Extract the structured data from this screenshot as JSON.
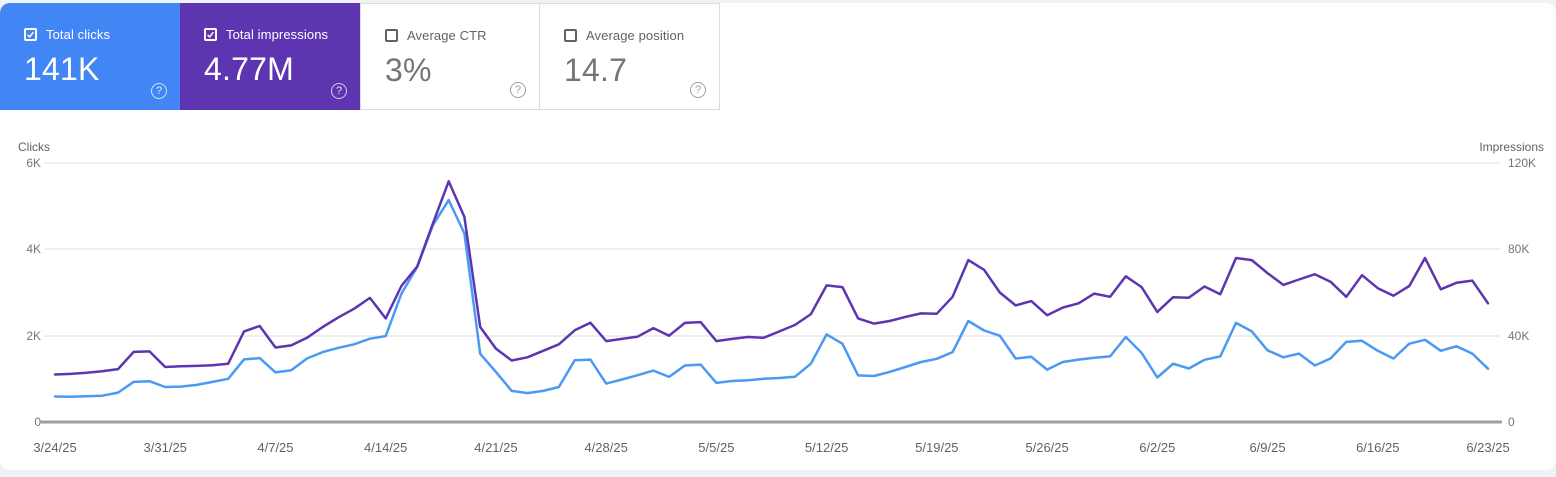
{
  "cards": [
    {
      "label": "Total clicks",
      "value": "141K",
      "checked": true,
      "bg": "#4285f4"
    },
    {
      "label": "Total impressions",
      "value": "4.77M",
      "checked": true,
      "bg": "#5e35b1"
    },
    {
      "label": "Average CTR",
      "value": "3%",
      "checked": false,
      "bg": "#ffffff"
    },
    {
      "label": "Average position",
      "value": "14.7",
      "checked": false,
      "bg": "#ffffff"
    }
  ],
  "chart_data": {
    "type": "line",
    "granularity": "daily",
    "date_range": {
      "start": "3/24/25",
      "end": "6/23/25"
    },
    "grid": true,
    "x_tick_labels": [
      "3/24/25",
      "3/31/25",
      "4/7/25",
      "4/14/25",
      "4/21/25",
      "4/28/25",
      "5/5/25",
      "5/12/25",
      "5/19/25",
      "5/26/25",
      "6/2/25",
      "6/9/25",
      "6/16/25",
      "6/23/25"
    ],
    "left_axis": {
      "title": "Clicks",
      "ticks": [
        "0",
        "2K",
        "4K",
        "6K"
      ],
      "range": [
        0,
        6000
      ]
    },
    "right_axis": {
      "title": "Impressions",
      "ticks": [
        "0",
        "40K",
        "80K",
        "120K"
      ],
      "range": [
        0,
        120000
      ]
    },
    "series": [
      {
        "name": "Clicks",
        "axis": "left",
        "color": "#4a9af4",
        "values": [
          590,
          585,
          595,
          610,
          680,
          930,
          945,
          810,
          820,
          860,
          930,
          1000,
          1450,
          1480,
          1150,
          1200,
          1470,
          1620,
          1720,
          1800,
          1930,
          1990,
          2970,
          3590,
          4560,
          5140,
          4370,
          1580,
          1160,
          720,
          670,
          720,
          810,
          1430,
          1445,
          890,
          985,
          1085,
          1190,
          1045,
          1310,
          1330,
          905,
          950,
          965,
          1000,
          1020,
          1050,
          1350,
          2030,
          1815,
          1080,
          1065,
          1160,
          1275,
          1390,
          1465,
          1620,
          2340,
          2120,
          2000,
          1470,
          1510,
          1215,
          1390,
          1445,
          1490,
          1520,
          1970,
          1600,
          1030,
          1350,
          1240,
          1440,
          1520,
          2295,
          2100,
          1660,
          1500,
          1585,
          1310,
          1470,
          1855,
          1880,
          1650,
          1470,
          1815,
          1905,
          1650,
          1755,
          1585,
          1235
        ]
      },
      {
        "name": "Impressions",
        "axis": "right",
        "color": "#5e35b1",
        "values": [
          22000,
          22300,
          22800,
          23500,
          24500,
          32500,
          32700,
          25500,
          25800,
          26000,
          26300,
          27000,
          42000,
          44500,
          34500,
          35500,
          39000,
          44000,
          48500,
          52500,
          57500,
          48000,
          63000,
          72000,
          92000,
          111500,
          95000,
          44000,
          34000,
          28500,
          30000,
          33000,
          36000,
          42500,
          46000,
          37500,
          38500,
          39500,
          43500,
          40000,
          45900,
          46300,
          37500,
          38500,
          39400,
          39000,
          42000,
          45000,
          50000,
          63300,
          62500,
          48000,
          45600,
          46800,
          48700,
          50300,
          50200,
          58000,
          75000,
          70500,
          60000,
          54000,
          56000,
          49500,
          53000,
          55000,
          59500,
          58000,
          67500,
          62500,
          51000,
          57800,
          57600,
          62800,
          59200,
          76000,
          75000,
          69000,
          63500,
          66000,
          68500,
          65000,
          58000,
          68000,
          62000,
          58500,
          63000,
          76000,
          61500,
          64500,
          65500,
          55000
        ]
      }
    ]
  }
}
